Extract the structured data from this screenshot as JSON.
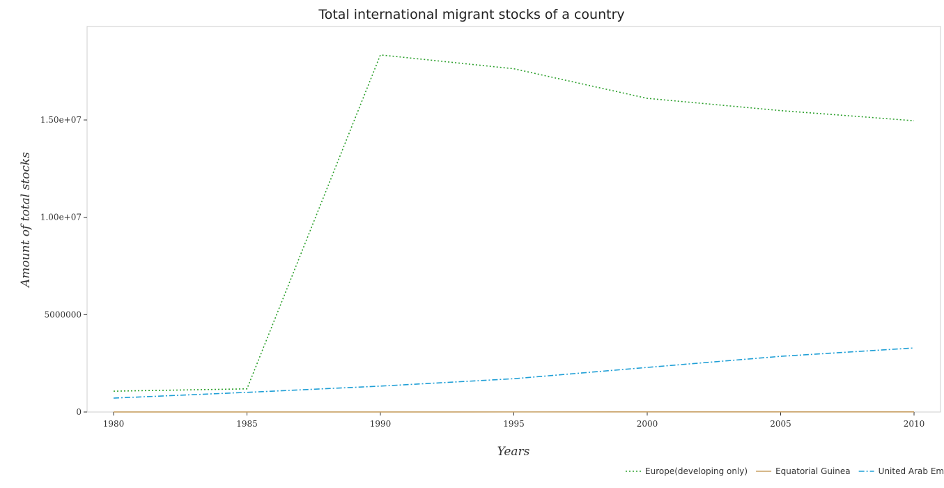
{
  "chart_data": {
    "type": "line",
    "title": "Total international migrant stocks of a country",
    "xlabel": "Years",
    "ylabel": "Amount of total stocks",
    "categories": [
      "1980",
      "1985",
      "1990",
      "1995",
      "2000",
      "2005",
      "2010"
    ],
    "y_ticks": [
      "0",
      "5000000",
      "1.00e+07",
      "1.50e+07"
    ],
    "ylim": [
      0,
      19800000
    ],
    "grid": false,
    "legend_position": "bottom-right",
    "series": [
      {
        "name": "Europe(developing only)",
        "color": "#2ca02c",
        "style": "dotted",
        "values": [
          1070000,
          1190000,
          18340000,
          17630000,
          16110000,
          15480000,
          14960000
        ]
      },
      {
        "name": "Equatorial Guinea",
        "color": "#c8a064",
        "style": "solid",
        "values": [
          3400,
          3600,
          3800,
          4200,
          5300,
          6400,
          7400
        ]
      },
      {
        "name": "United Arab Emirates",
        "color": "#1f9fd6",
        "style": "dash-dot",
        "values": [
          715000,
          1010000,
          1330000,
          1710000,
          2290000,
          2860000,
          3290000
        ]
      }
    ]
  }
}
